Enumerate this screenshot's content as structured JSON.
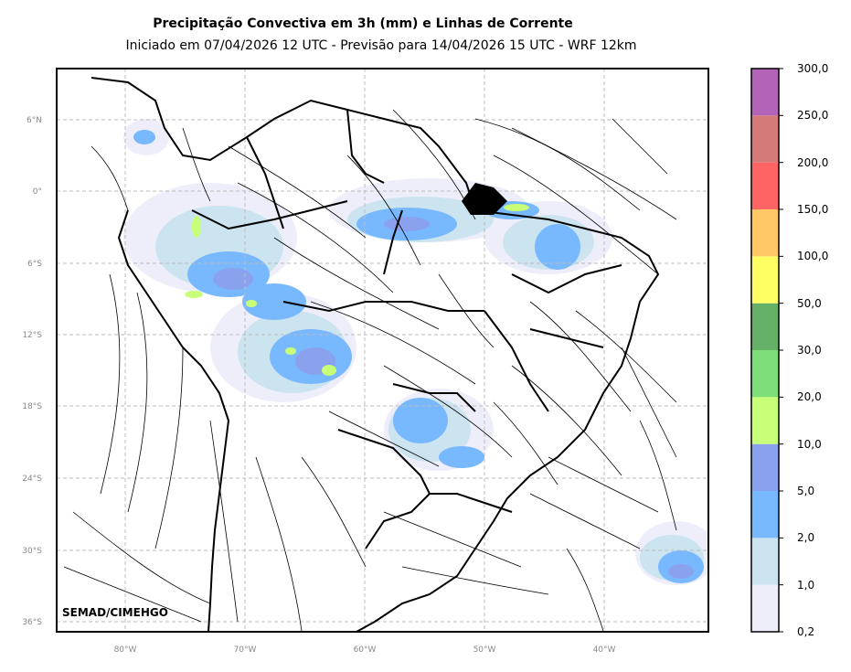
{
  "title": "Precipitação Convectiva em 3h (mm) e Linhas de Corrente",
  "subtitle": "Iniciado em 07/04/2026 12 UTC - Previsão para 14/04/2026 15 UTC - WRF 12km",
  "credit": "SEMAD/CIMEHGO",
  "axes": {
    "lat_ticks": [
      "6°N",
      "0°",
      "6°S",
      "12°S",
      "18°S",
      "24°S",
      "30°S",
      "36°S"
    ],
    "lon_ticks": [
      "80°W",
      "70°W",
      "60°W",
      "50°W",
      "40°W"
    ],
    "grid": true
  },
  "colorbar": {
    "levels": [
      "0,2",
      "1,0",
      "2,0",
      "5,0",
      "10,0",
      "20,0",
      "30,0",
      "50,0",
      "100,0",
      "150,0",
      "200,0",
      "250,0",
      "300,0"
    ],
    "colors": [
      "#eeeefa",
      "#cce4ef",
      "#78b8ff",
      "#8aa2ee",
      "#c8ff78",
      "#7ede7a",
      "#64b066",
      "#ffff64",
      "#ffc864",
      "#ff6464",
      "#d47a78",
      "#b464b8"
    ]
  }
}
